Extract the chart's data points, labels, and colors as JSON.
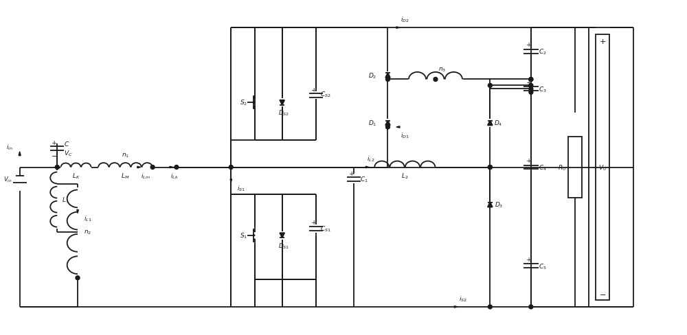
{
  "fig_width": 10.0,
  "fig_height": 4.89,
  "dpi": 100,
  "line_color": "#1a1a1a",
  "lw": 1.3,
  "bg_color": "#ffffff"
}
